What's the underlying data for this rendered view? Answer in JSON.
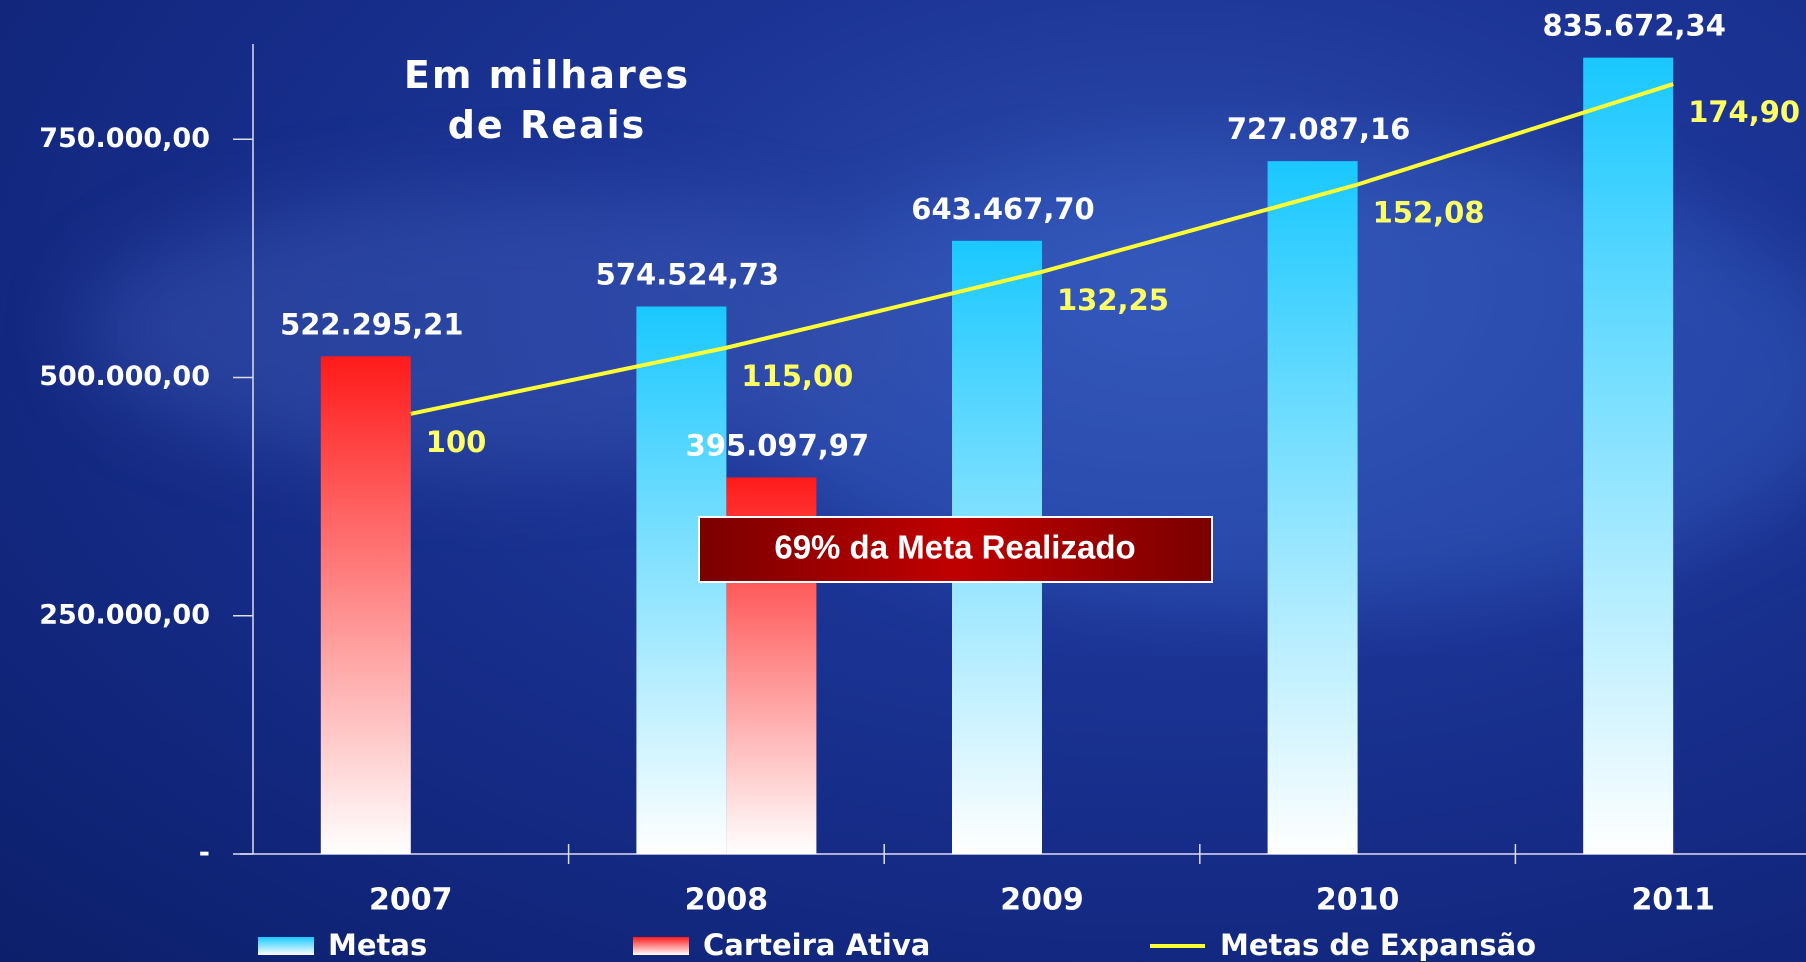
{
  "chart_data": {
    "type": "bar",
    "title": "Em milhares de Reais",
    "categories": [
      "2007",
      "2008",
      "2009",
      "2010",
      "2011"
    ],
    "series": [
      {
        "name": "Metas",
        "color": "#19c8ff",
        "values": [
          null,
          574524.73,
          643467.7,
          727087.16,
          835672.34
        ],
        "value_labels": [
          null,
          "574.524,73",
          "643.467,70",
          "727.087,16",
          "835.672,34"
        ]
      },
      {
        "name": "Carteira Ativa",
        "color": "#ff1a1a",
        "values": [
          522295.21,
          395097.97,
          null,
          null,
          null
        ],
        "value_labels": [
          "522.295,21",
          "395.097,97",
          null,
          null,
          null
        ]
      },
      {
        "name": "Metas de Expansão",
        "type": "line",
        "axis": "y2",
        "color": "#ffff33",
        "values": [
          100,
          115.0,
          132.25,
          152.08,
          174.9
        ],
        "value_labels": [
          "100",
          "115,00",
          "132,25",
          "152,08",
          "174,90"
        ]
      }
    ],
    "ylim": [
      0,
      850000
    ],
    "yticks": [
      {
        "value": 0,
        "label": "-"
      },
      {
        "value": 250000,
        "label": "250.000,00"
      },
      {
        "value": 500000,
        "label": "500.000,00"
      },
      {
        "value": 750000,
        "label": "750.000,00"
      }
    ],
    "y2lim": [
      0,
      184
    ],
    "annotation": "69% da Meta Realizado"
  }
}
